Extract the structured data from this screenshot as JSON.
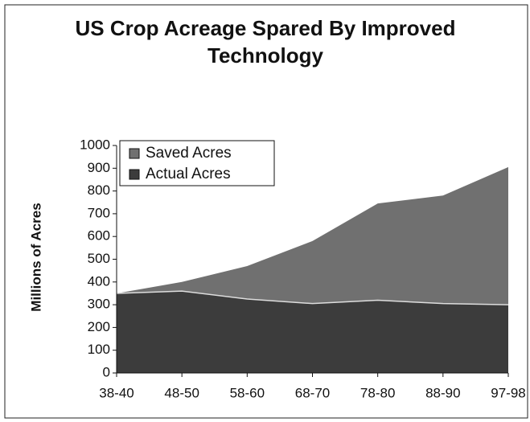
{
  "chart_data": {
    "type": "stacked_area",
    "title": "US Crop Acreage Spared By Improved Technology",
    "y_label": "Millions of Acres",
    "categories": [
      "38-40",
      "48-50",
      "58-60",
      "68-70",
      "78-80",
      "88-90",
      "97-98"
    ],
    "series": [
      {
        "name": "Actual Acres",
        "color": "#3c3c3c",
        "values": [
          350,
          360,
          325,
          305,
          320,
          305,
          300
        ]
      },
      {
        "name": "Saved Acres",
        "color": "#707070",
        "values": [
          0,
          40,
          145,
          275,
          425,
          475,
          605
        ]
      }
    ],
    "ylim": [
      0,
      1000
    ],
    "yticks": [
      0,
      100,
      200,
      300,
      400,
      500,
      600,
      700,
      800,
      900,
      1000
    ],
    "legend": "upper left"
  }
}
